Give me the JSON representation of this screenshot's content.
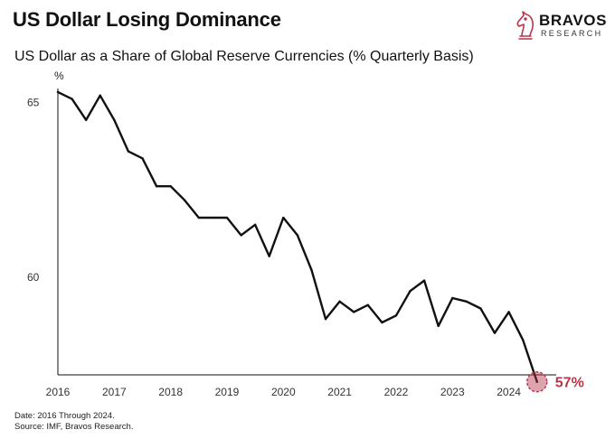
{
  "header": {
    "title": "US Dollar Losing Dominance",
    "subtitle": "US Dollar as a Share of Global Reserve Currencies (% Quarterly Basis)"
  },
  "brand": {
    "name": "BRAVOS",
    "tagline": "RESEARCH",
    "icon": "knight-chess-icon",
    "color": "#b5364a"
  },
  "footer": {
    "date_note": "Date: 2016 Through 2024.",
    "source_note": "Source: IMF, Bravos Research."
  },
  "chart_data": {
    "type": "line",
    "title": "US Dollar as a Share of Global Reserve Currencies (% Quarterly Basis)",
    "ylabel": "%",
    "xlabel": "",
    "xlim": [
      2016,
      2024.6
    ],
    "ylim": [
      57.2,
      65.4
    ],
    "x_ticks": [
      2016,
      2017,
      2018,
      2019,
      2020,
      2021,
      2022,
      2023,
      2024
    ],
    "y_ticks": [
      60,
      65
    ],
    "grid": false,
    "series": [
      {
        "color": "#111111",
        "x": [
          2016.0,
          2016.25,
          2016.5,
          2016.75,
          2017.0,
          2017.25,
          2017.5,
          2017.75,
          2018.0,
          2018.25,
          2018.5,
          2018.75,
          2019.0,
          2019.25,
          2019.5,
          2019.75,
          2020.0,
          2020.25,
          2020.5,
          2020.75,
          2021.0,
          2021.25,
          2021.5,
          2021.75,
          2022.0,
          2022.25,
          2022.5,
          2022.75,
          2023.0,
          2023.25,
          2023.5,
          2023.75,
          2024.0,
          2024.25,
          2024.5
        ],
        "values": [
          65.3,
          65.1,
          64.5,
          65.2,
          64.5,
          63.6,
          63.4,
          62.6,
          62.6,
          62.2,
          61.7,
          61.7,
          61.7,
          61.2,
          61.5,
          60.6,
          61.7,
          61.2,
          60.2,
          58.8,
          59.3,
          59.0,
          59.2,
          58.7,
          58.9,
          59.6,
          59.9,
          58.6,
          59.4,
          59.3,
          59.1,
          58.4,
          59.0,
          58.2,
          57.0
        ]
      }
    ],
    "annotation": {
      "label": "57%",
      "x": 2024.5,
      "value": 57.0,
      "color": "#b5364a"
    }
  }
}
